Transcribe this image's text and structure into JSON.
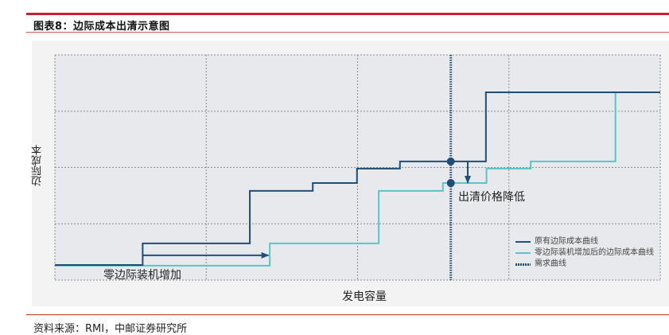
{
  "header": {
    "title": "图表8：边际成本出清示意图"
  },
  "source": "资料来源：RMI，中邮证券研究所",
  "chart_data": {
    "type": "line",
    "step": true,
    "title": "",
    "xlabel": "发电容量",
    "ylabel": "边际成本",
    "xlim": [
      0,
      100
    ],
    "ylim": [
      0,
      100
    ],
    "grid": true,
    "legend_position": "bottom-right",
    "colors": {
      "original": "#1f4e79",
      "new": "#5bc4c6",
      "demand": "#1f4e79"
    },
    "series": [
      {
        "name": "原有边际成本曲线",
        "x": [
          0,
          14.5,
          32.2,
          42.6,
          49.9,
          57.0,
          71.2,
          100
        ],
        "y": [
          6.7,
          16.3,
          39.6,
          43.1,
          49.5,
          52.7,
          83.4,
          83.4
        ]
      },
      {
        "name": "零边际装机增加后的边际成本曲线",
        "x": [
          0,
          35.5,
          53.5,
          64.1,
          71.3,
          78.6,
          92.6,
          100
        ],
        "y": [
          6.4,
          16.3,
          39.6,
          43.1,
          49.5,
          52.7,
          83.4,
          83.4
        ]
      }
    ],
    "demand": {
      "name": "需求曲线",
      "x": 65.4
    },
    "intersections": [
      {
        "x": 65.4,
        "y": 52.7
      },
      {
        "x": 65.4,
        "y": 43.1
      }
    ],
    "annotations": [
      {
        "text": "零边际装机增加",
        "arrow": "right",
        "from": [
          14.5,
          11
        ],
        "to": [
          35.3,
          11
        ]
      },
      {
        "text": "出清价格降低",
        "arrow": "down",
        "from": [
          68.2,
          52.7
        ],
        "to": [
          68.2,
          43.1
        ]
      }
    ]
  }
}
